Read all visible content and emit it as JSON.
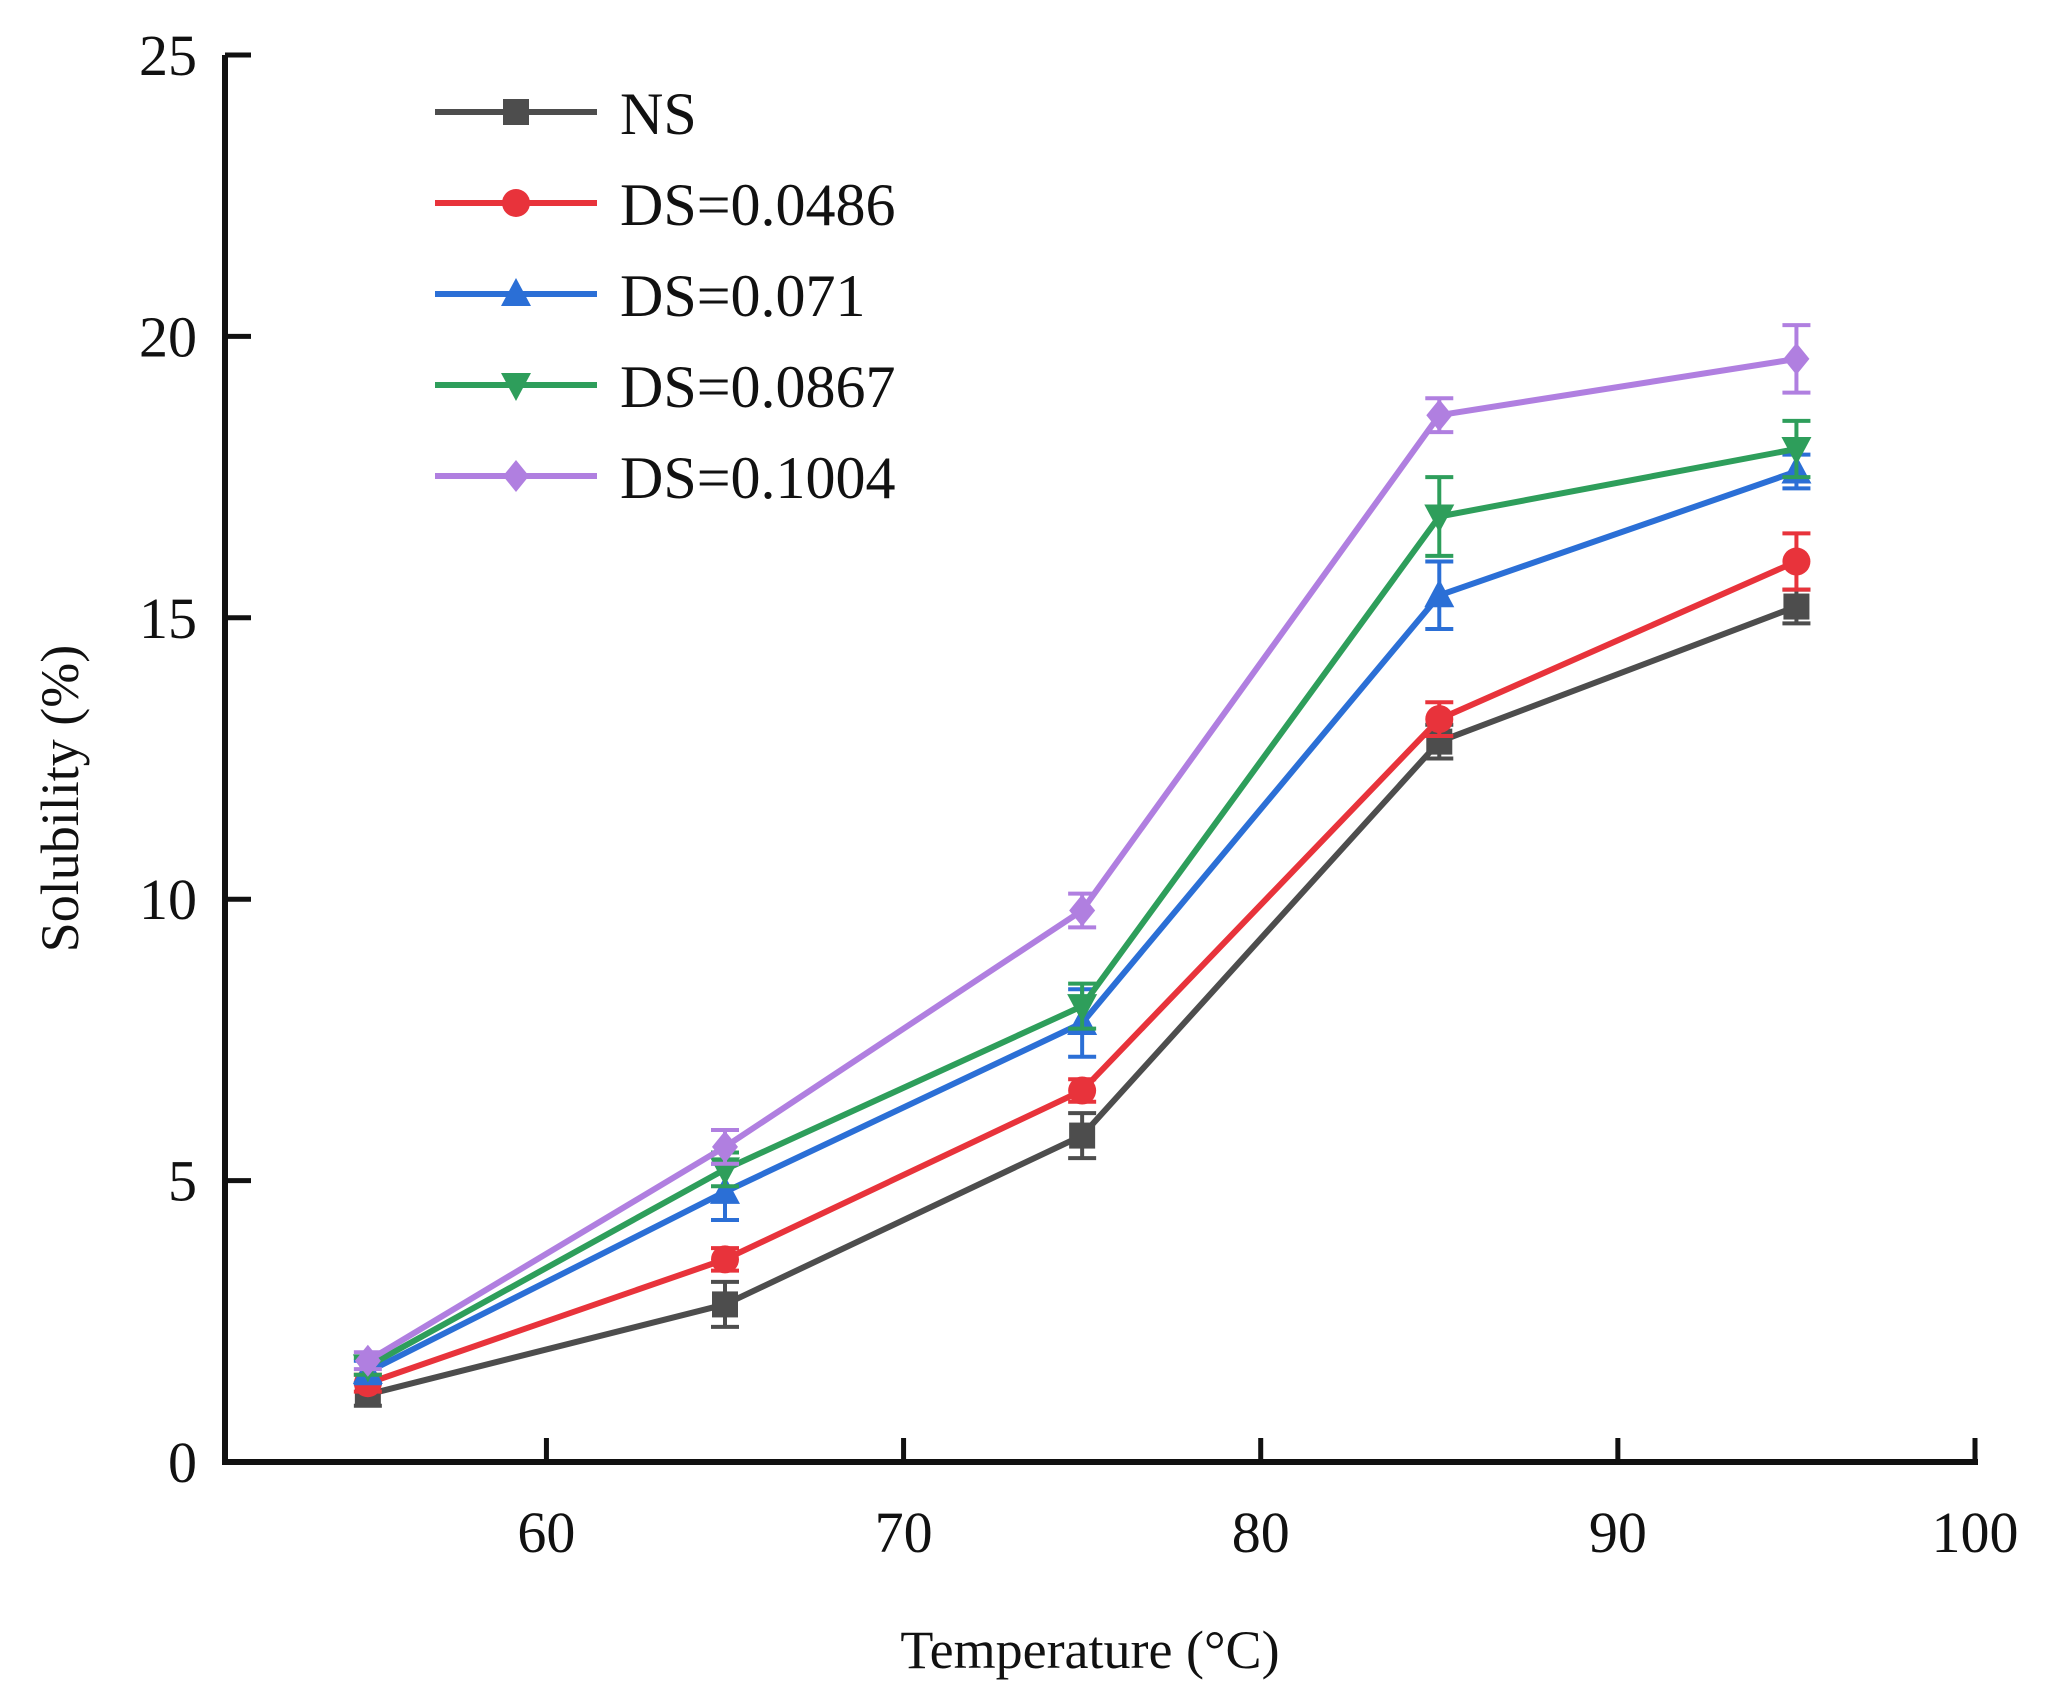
{
  "chart_data": {
    "type": "line",
    "title": "",
    "xlabel": "Temperature (°C)",
    "ylabel": "Solubility (%)",
    "xlim": [
      51,
      100
    ],
    "ylim": [
      0,
      25
    ],
    "xticks": [
      60,
      70,
      80,
      90,
      100
    ],
    "yticks": [
      0,
      5,
      10,
      15,
      20,
      25
    ],
    "xtick_labels": [
      "60",
      "70",
      "80",
      "90",
      "100"
    ],
    "ytick_labels": [
      "0",
      "5",
      "10",
      "15",
      "20",
      "25"
    ],
    "grid": false,
    "legend_position": "top-left",
    "x": [
      55,
      65,
      75,
      85,
      95
    ],
    "series": [
      {
        "name": "NS",
        "color": "#4d4d4d",
        "marker": "square",
        "values": [
          1.2,
          2.8,
          5.8,
          12.8,
          15.2
        ],
        "errors": [
          0.2,
          0.4,
          0.4,
          0.3,
          0.3
        ]
      },
      {
        "name": "DS=0.0486",
        "color": "#e8333b",
        "marker": "circle",
        "values": [
          1.4,
          3.6,
          6.6,
          13.2,
          16.0
        ],
        "errors": [
          0.15,
          0.2,
          0.2,
          0.3,
          0.5
        ]
      },
      {
        "name": "DS=0.071",
        "color": "#2b6fd6",
        "marker": "triangle-up",
        "values": [
          1.6,
          4.8,
          7.8,
          15.4,
          17.6
        ],
        "errors": [
          0.2,
          0.5,
          0.6,
          0.6,
          0.3
        ]
      },
      {
        "name": "DS=0.0867",
        "color": "#2e9e5b",
        "marker": "triangle-down",
        "values": [
          1.7,
          5.2,
          8.1,
          16.8,
          18.0
        ],
        "errors": [
          0.15,
          0.3,
          0.4,
          0.7,
          0.5
        ]
      },
      {
        "name": "DS=0.1004",
        "color": "#b07fe0",
        "marker": "diamond",
        "values": [
          1.8,
          5.6,
          9.8,
          18.6,
          19.6
        ],
        "errors": [
          0.15,
          0.3,
          0.3,
          0.3,
          0.6
        ]
      }
    ]
  }
}
